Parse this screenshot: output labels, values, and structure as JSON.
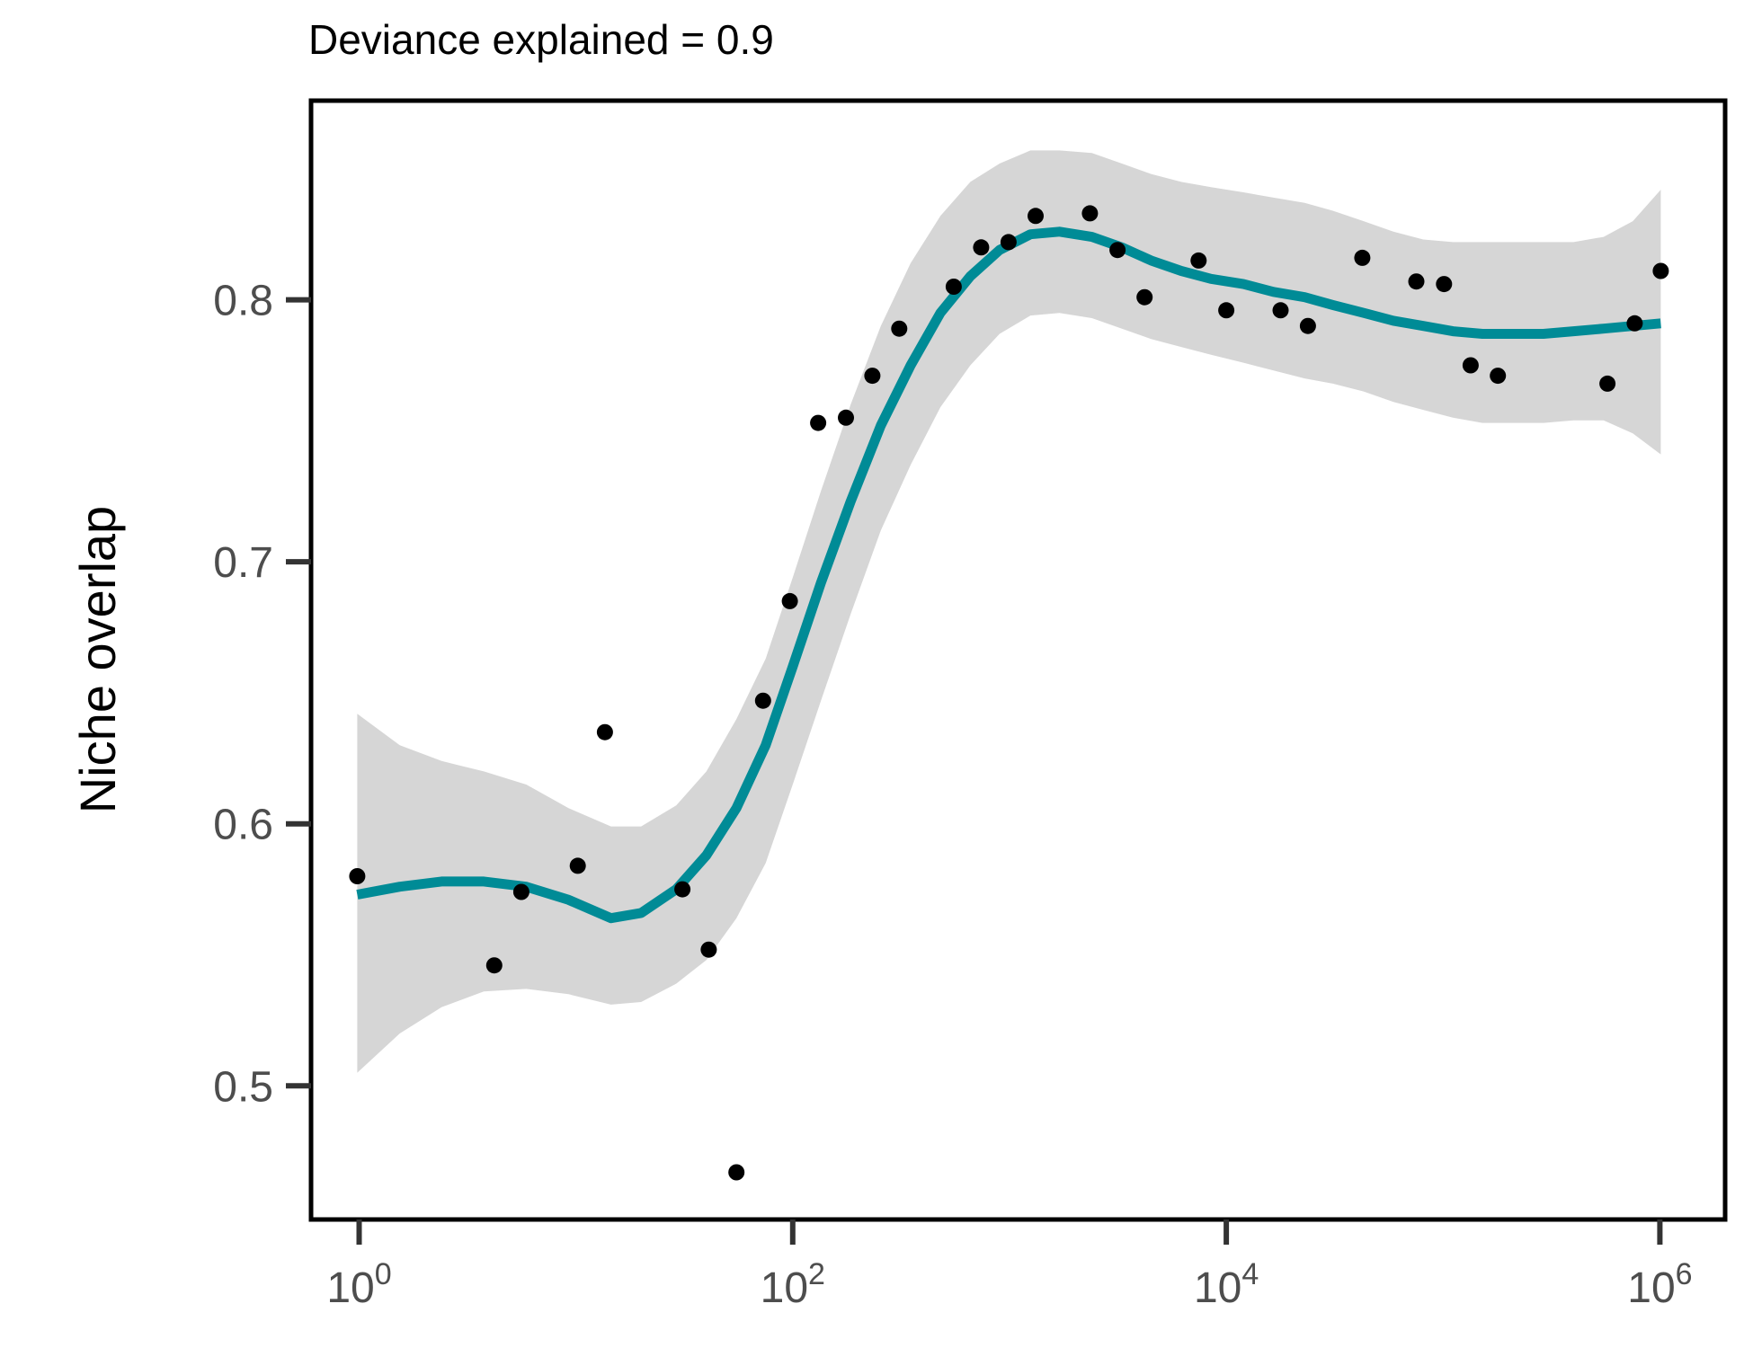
{
  "chart_data": {
    "type": "scatter",
    "title": "Deviance explained = 0.9",
    "xlabel": "",
    "ylabel": "Niche overlap",
    "x_scale": "log10",
    "xlim": [
      0.6,
      2000000
    ],
    "ylim": [
      0.449,
      0.876
    ],
    "x_ticks": [
      {
        "value": 1,
        "base": "10",
        "exp": "0"
      },
      {
        "value": 100,
        "base": "10",
        "exp": "2"
      },
      {
        "value": 10000,
        "base": "10",
        "exp": "4"
      },
      {
        "value": 1000000,
        "base": "10",
        "exp": "6"
      }
    ],
    "y_ticks": [
      {
        "value": 0.5,
        "label": "0.5"
      },
      {
        "value": 0.6,
        "label": "0.6"
      },
      {
        "value": 0.7,
        "label": "0.7"
      },
      {
        "value": 0.8,
        "label": "0.8"
      }
    ],
    "grid": false,
    "points": [
      {
        "x": 0.98,
        "y": 0.58
      },
      {
        "x": 4.2,
        "y": 0.546
      },
      {
        "x": 5.6,
        "y": 0.574
      },
      {
        "x": 10.2,
        "y": 0.584
      },
      {
        "x": 13.6,
        "y": 0.635
      },
      {
        "x": 31,
        "y": 0.575
      },
      {
        "x": 41,
        "y": 0.552
      },
      {
        "x": 55,
        "y": 0.467
      },
      {
        "x": 73,
        "y": 0.647
      },
      {
        "x": 97,
        "y": 0.685
      },
      {
        "x": 131,
        "y": 0.753
      },
      {
        "x": 176,
        "y": 0.755
      },
      {
        "x": 233,
        "y": 0.771
      },
      {
        "x": 310,
        "y": 0.789
      },
      {
        "x": 553,
        "y": 0.805
      },
      {
        "x": 740,
        "y": 0.82
      },
      {
        "x": 990,
        "y": 0.822
      },
      {
        "x": 1320,
        "y": 0.832
      },
      {
        "x": 2350,
        "y": 0.833
      },
      {
        "x": 3150,
        "y": 0.819
      },
      {
        "x": 4200,
        "y": 0.801
      },
      {
        "x": 7450,
        "y": 0.815
      },
      {
        "x": 10000,
        "y": 0.796
      },
      {
        "x": 17800,
        "y": 0.796
      },
      {
        "x": 23800,
        "y": 0.79
      },
      {
        "x": 42400,
        "y": 0.816
      },
      {
        "x": 75300,
        "y": 0.807
      },
      {
        "x": 101000,
        "y": 0.806
      },
      {
        "x": 134000,
        "y": 0.775
      },
      {
        "x": 179000,
        "y": 0.771
      },
      {
        "x": 573000,
        "y": 0.768
      },
      {
        "x": 765000,
        "y": 0.791
      },
      {
        "x": 1010000,
        "y": 0.811
      }
    ],
    "fit": {
      "x": [
        0.98,
        1.54,
        2.4,
        3.76,
        5.9,
        9.24,
        14.5,
        20,
        29,
        40,
        55,
        75,
        100,
        135,
        185,
        255,
        350,
        480,
        660,
        900,
        1250,
        1700,
        2400,
        3300,
        4500,
        6200,
        8500,
        12000,
        16500,
        23000,
        31000,
        43000,
        59000,
        81000,
        111000,
        152000,
        210000,
        290000,
        400000,
        550000,
        750000,
        1010000
      ],
      "y": [
        0.573,
        0.576,
        0.578,
        0.578,
        0.576,
        0.571,
        0.564,
        0.566,
        0.575,
        0.588,
        0.606,
        0.63,
        0.66,
        0.692,
        0.723,
        0.752,
        0.775,
        0.795,
        0.809,
        0.819,
        0.825,
        0.826,
        0.824,
        0.82,
        0.815,
        0.811,
        0.808,
        0.806,
        0.803,
        0.801,
        0.798,
        0.795,
        0.792,
        0.79,
        0.788,
        0.787,
        0.787,
        0.787,
        0.788,
        0.789,
        0.79,
        0.791
      ],
      "lower": [
        0.505,
        0.52,
        0.53,
        0.536,
        0.537,
        0.535,
        0.531,
        0.532,
        0.539,
        0.548,
        0.564,
        0.585,
        0.615,
        0.647,
        0.68,
        0.712,
        0.737,
        0.759,
        0.775,
        0.787,
        0.794,
        0.795,
        0.793,
        0.789,
        0.785,
        0.782,
        0.779,
        0.776,
        0.773,
        0.77,
        0.768,
        0.765,
        0.761,
        0.758,
        0.755,
        0.753,
        0.753,
        0.753,
        0.754,
        0.754,
        0.749,
        0.741
      ],
      "upper": [
        0.642,
        0.63,
        0.624,
        0.62,
        0.615,
        0.606,
        0.599,
        0.599,
        0.607,
        0.62,
        0.64,
        0.663,
        0.694,
        0.727,
        0.76,
        0.79,
        0.814,
        0.832,
        0.845,
        0.852,
        0.857,
        0.857,
        0.856,
        0.852,
        0.848,
        0.845,
        0.843,
        0.841,
        0.839,
        0.837,
        0.834,
        0.83,
        0.826,
        0.823,
        0.822,
        0.822,
        0.822,
        0.822,
        0.822,
        0.824,
        0.83,
        0.842
      ]
    },
    "colors": {
      "line": "#008b96",
      "ribbon": "#d6d6d6",
      "point": "#000000",
      "axis": "#333333",
      "frame": "#000000"
    }
  }
}
